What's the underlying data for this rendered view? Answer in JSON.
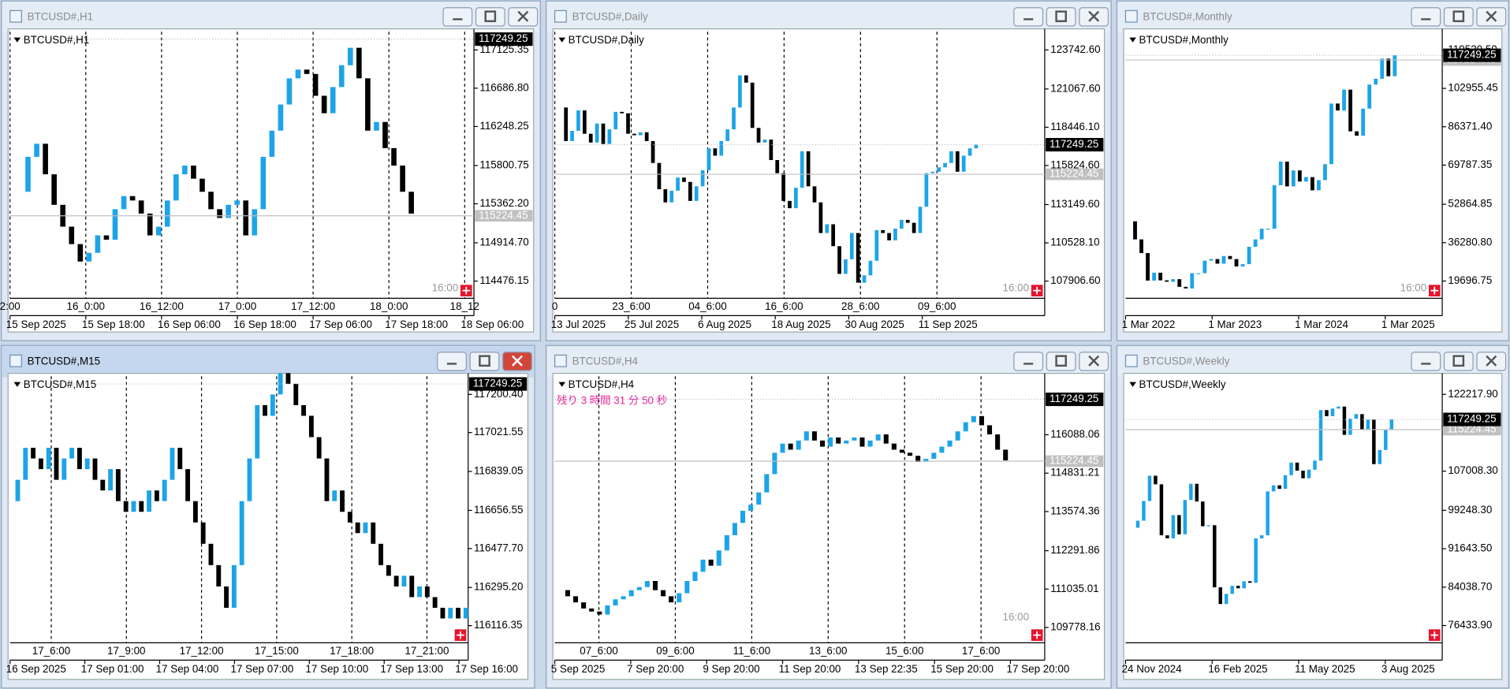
{
  "windows": [
    {
      "title": "BTCUSD#,H1",
      "symbol_label": "BTCUSD#,H1",
      "ylim": [
        114278.8,
        117333.7
      ],
      "price_ticks": [
        117125.35,
        {
          "value": 116686.8,
          "label": "116686.80"
        },
        116248.25,
        115800.75,
        {
          "value": 115362.2,
          "label": "115362.20"
        },
        {
          "value": 114914.7,
          "label": "114914.70"
        },
        114476.15
      ],
      "last_price": 117249.25,
      "ref_price": 115224.45,
      "time_labels": [
        "15 Sep 2025",
        "15 Sep 18:00",
        "16 Sep 06:00",
        "16 Sep 18:00",
        "17 Sep 06:00",
        "17 Sep 18:00",
        "18 Sep 06:00"
      ],
      "grid_labels": [
        "2:00",
        "16_0:00",
        "16_12:00",
        "17_0:00",
        "17_12:00",
        "18_0:00",
        "18_12"
      ],
      "countdown": "16:00",
      "closes": [
        115500,
        115900,
        116050,
        115700,
        115350,
        115100,
        114900,
        114700,
        114800,
        115000,
        114950,
        115300,
        115450,
        115400,
        115250,
        115000,
        115100,
        115400,
        115700,
        115800,
        115650,
        115500,
        115300,
        115200,
        115350,
        115400,
        115000,
        115300,
        115900,
        116200,
        116500,
        116800,
        116900,
        116850,
        116600,
        116400,
        116700,
        116950,
        117150,
        116800,
        116200,
        116300,
        116000,
        115800,
        115500,
        115250
      ]
    },
    {
      "title": "BTCUSD#,Daily",
      "symbol_label": "BTCUSD#,Daily",
      "ylim": [
        106728,
        124987
      ],
      "price_ticks": [
        {
          "value": 123742.6,
          "label": "123742.60"
        },
        {
          "value": 121067.6,
          "label": "121067.60"
        },
        {
          "value": 118446.1,
          "label": "118446.10"
        },
        {
          "value": 115824.6,
          "label": "115824.60"
        },
        {
          "value": 113149.6,
          "label": "113149.60"
        },
        {
          "value": 110528.1,
          "label": "110528.10"
        },
        {
          "value": 107906.6,
          "label": "107906.60"
        }
      ],
      "last_price": 117249.25,
      "ref_price": 115224.45,
      "time_labels": [
        "13 Jul 2025",
        "25 Jul 2025",
        "6 Aug 2025",
        "18 Aug 2025",
        "30 Aug 2025",
        "11 Sep 2025"
      ],
      "grid_labels": [
        "0",
        "23_6:00",
        "04_6:00",
        "16_6:00",
        "28_6:00",
        "09_6:00"
      ],
      "countdown": "16:00",
      "closes": [
        119800,
        117500,
        118200,
        119600,
        118000,
        117400,
        118700,
        117300,
        118300,
        119500,
        119400,
        118000,
        117900,
        118100,
        117500,
        116000,
        114200,
        113300,
        114100,
        115000,
        114700,
        113400,
        114400,
        115500,
        117000,
        116500,
        117500,
        118300,
        119800,
        122000,
        121500,
        118400,
        117400,
        117600,
        116200,
        115300,
        113400,
        112900,
        114300,
        116800,
        114400,
        113300,
        111200,
        111800,
        110300,
        108400,
        109400,
        111200,
        107800,
        108300,
        109300,
        111400,
        111200,
        110700,
        111500,
        112100,
        111900,
        111200,
        113000,
        115300,
        115400,
        115700,
        116000,
        116800,
        115400,
        116500,
        117000,
        117249
      ]
    },
    {
      "title": "BTCUSD#,Monthly",
      "symbol_label": "BTCUSD#,Monthly",
      "ylim": [
        12234,
        127416
      ],
      "price_ticks": [
        {
          "value": 119520.5,
          "label": "119520.50"
        },
        102955.45,
        {
          "value": 86371.4,
          "label": "86371.40"
        },
        69787.35,
        52864.85,
        {
          "value": 36280.8,
          "label": "36280.80"
        },
        19696.75
      ],
      "last_price": 117249.25,
      "ref_price": 115224.45,
      "time_labels": [
        "1 Mar 2022",
        "1 Mar 2023",
        "1 Mar 2024",
        "1 Mar 2025"
      ],
      "grid_labels": [],
      "countdown": "16:00",
      "closes": [
        45500,
        37700,
        31800,
        19900,
        23300,
        20000,
        19400,
        20500,
        17200,
        16500,
        23100,
        23100,
        28500,
        29200,
        27200,
        30500,
        29200,
        26000,
        27000,
        34500,
        37700,
        42300,
        42300,
        61100,
        71300,
        60600,
        67500,
        62700,
        64600,
        58900,
        63300,
        70200,
        96400,
        93400,
        102400,
        84400,
        82500,
        94200,
        104600,
        107100,
        115800,
        108200,
        117249
      ]
    },
    {
      "title": "BTCUSD#,M15",
      "symbol_label": "BTCUSD#,M15",
      "ylim": [
        116035.8,
        117285.4
      ],
      "price_ticks": [
        {
          "value": 117200.4,
          "label": "117200.40"
        },
        117021.55,
        116839.05,
        116656.55,
        {
          "value": 116477.7,
          "label": "116477.70"
        },
        {
          "value": 116295.2,
          "label": "116295.20"
        },
        116116.35
      ],
      "last_price": 117249.25,
      "ref_price": null,
      "time_labels": [
        "16 Sep 2025",
        "17 Sep 01:00",
        "17 Sep 04:00",
        "17 Sep 07:00",
        "17 Sep 10:00",
        "17 Sep 13:00",
        "17 Sep 16:00"
      ],
      "grid_labels": [
        "17_6:00",
        "17_9:00",
        "17_12:00",
        "17_15:00",
        "17_18:00",
        "17_21:00"
      ],
      "countdown": null,
      "closes": [
        116700,
        116800,
        116950,
        116900,
        116850,
        116950,
        116800,
        116900,
        116950,
        116850,
        116900,
        116800,
        116750,
        116850,
        116700,
        116650,
        116700,
        116650,
        116750,
        116700,
        116800,
        116950,
        116850,
        116700,
        116600,
        116500,
        116400,
        116300,
        116200,
        116400,
        116700,
        116900,
        117150,
        117100,
        117200,
        117300,
        117250,
        117150,
        117100,
        117000,
        116900,
        116700,
        116750,
        116650,
        116600,
        116550,
        116600,
        116500,
        116400,
        116350,
        116300,
        116350,
        116250,
        116300,
        116250,
        116200,
        116150,
        116200,
        116150,
        116200
      ]
    },
    {
      "title": "BTCUSD#,H4",
      "symbol_label": "BTCUSD#,H4",
      "ylim": [
        109275.4,
        118004.7
      ],
      "note": "残り 3 時間 31 分 50 秒",
      "price_ticks": [
        116088.06,
        114831.21,
        113574.36,
        112291.86,
        111035.01,
        109778.16
      ],
      "last_price": 117249.25,
      "ref_price": 115224.45,
      "time_labels": [
        "5 Sep 2025",
        "7 Sep 20:00",
        "9 Sep 20:00",
        "11 Sep 20:00",
        "13 Sep 22:35",
        "15 Sep 20:00",
        "17 Sep 20:00"
      ],
      "grid_labels": [
        "07_6:00",
        "09_6:00",
        "11_6:00",
        "13_6:00",
        "15_6:00",
        "17_6:00"
      ],
      "countdown": "16:00",
      "closes": [
        111000,
        110800,
        110600,
        110400,
        110300,
        110200,
        110500,
        110700,
        110800,
        111000,
        111100,
        111300,
        111000,
        110800,
        110600,
        110900,
        111300,
        111600,
        112000,
        111800,
        112300,
        112800,
        113200,
        113600,
        113800,
        114200,
        114800,
        115500,
        115800,
        115600,
        115900,
        116200,
        115900,
        115700,
        116000,
        115800,
        115900,
        116000,
        115700,
        115900,
        116100,
        115800,
        115600,
        115500,
        115400,
        115200,
        115300,
        115500,
        115700,
        115900,
        116200,
        116500,
        116700,
        116400,
        116100,
        115600,
        115250
      ]
    },
    {
      "title": "BTCUSD#,Weekly",
      "symbol_label": "BTCUSD#,Weekly",
      "ylim": [
        73011,
        125800
      ],
      "price_ticks": [
        {
          "value": 122217.9,
          "label": "122217.90"
        },
        {
          "value": 107008.3,
          "label": "107008.30"
        },
        {
          "value": 99248.3,
          "label": "99248.30"
        },
        {
          "value": 91643.5,
          "label": "91643.50"
        },
        {
          "value": 84038.7,
          "label": "84038.70"
        },
        {
          "value": 76433.9,
          "label": "76433.90"
        }
      ],
      "last_price": 117249.25,
      "ref_price": 115224.45,
      "time_labels": [
        "24 Nov 2024",
        "16 Feb 2025",
        "11 May 2025",
        "3 Aug 2025"
      ],
      "grid_labels": [],
      "countdown": null,
      "closes": [
        95800,
        97200,
        101100,
        106100,
        104400,
        94300,
        93700,
        98300,
        94500,
        101300,
        104500,
        101000,
        96100,
        96300,
        84000,
        80700,
        82700,
        84300,
        83800,
        85200,
        84900,
        93700,
        94300,
        103000,
        104200,
        103500,
        106200,
        108700,
        107100,
        105600,
        107300,
        109100,
        119100,
        117900,
        119400,
        119800,
        114200,
        117400,
        118300,
        115300,
        117200,
        108400,
        111200,
        115300,
        117249
      ]
    }
  ]
}
